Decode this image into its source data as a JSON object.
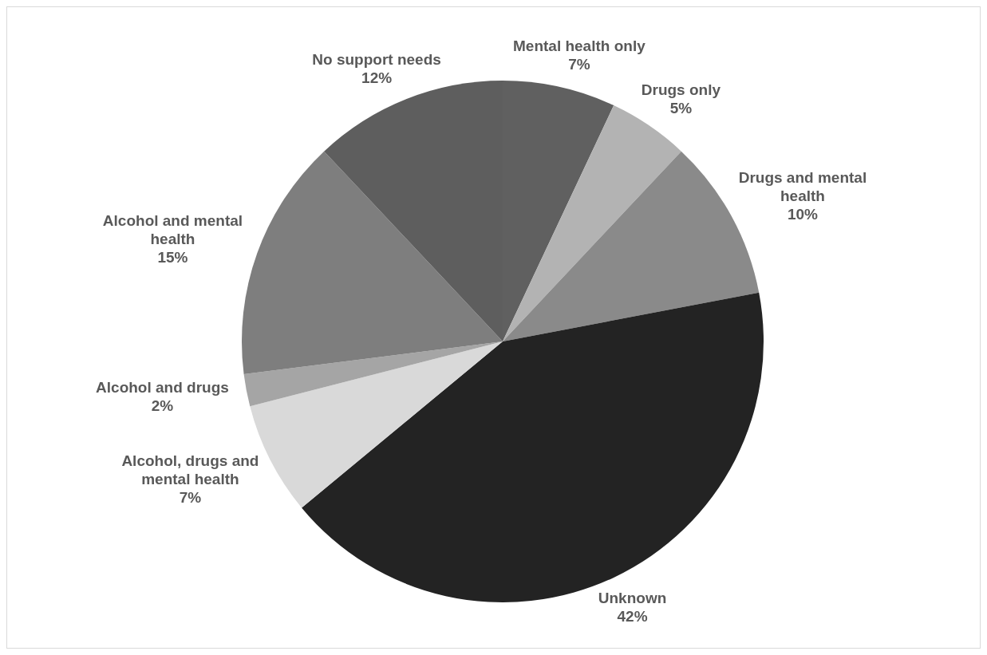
{
  "chart_data": {
    "type": "pie",
    "categories": [
      "Mental health only",
      "Drugs only",
      "Drugs and mental health",
      "Unknown",
      "Alcohol, drugs and mental health",
      "Alcohol and drugs",
      "Alcohol and mental health",
      "No support needs"
    ],
    "values": [
      7,
      5,
      10,
      42,
      7,
      2,
      15,
      12
    ],
    "value_labels": [
      "7%",
      "5%",
      "10%",
      "42%",
      "7%",
      "2%",
      "15%",
      "12%"
    ],
    "colors": [
      "#606060",
      "#b3b3b3",
      "#8a8a8a",
      "#232323",
      "#d9d9d9",
      "#a5a5a5",
      "#7e7e7e",
      "#5e5e5e"
    ]
  }
}
